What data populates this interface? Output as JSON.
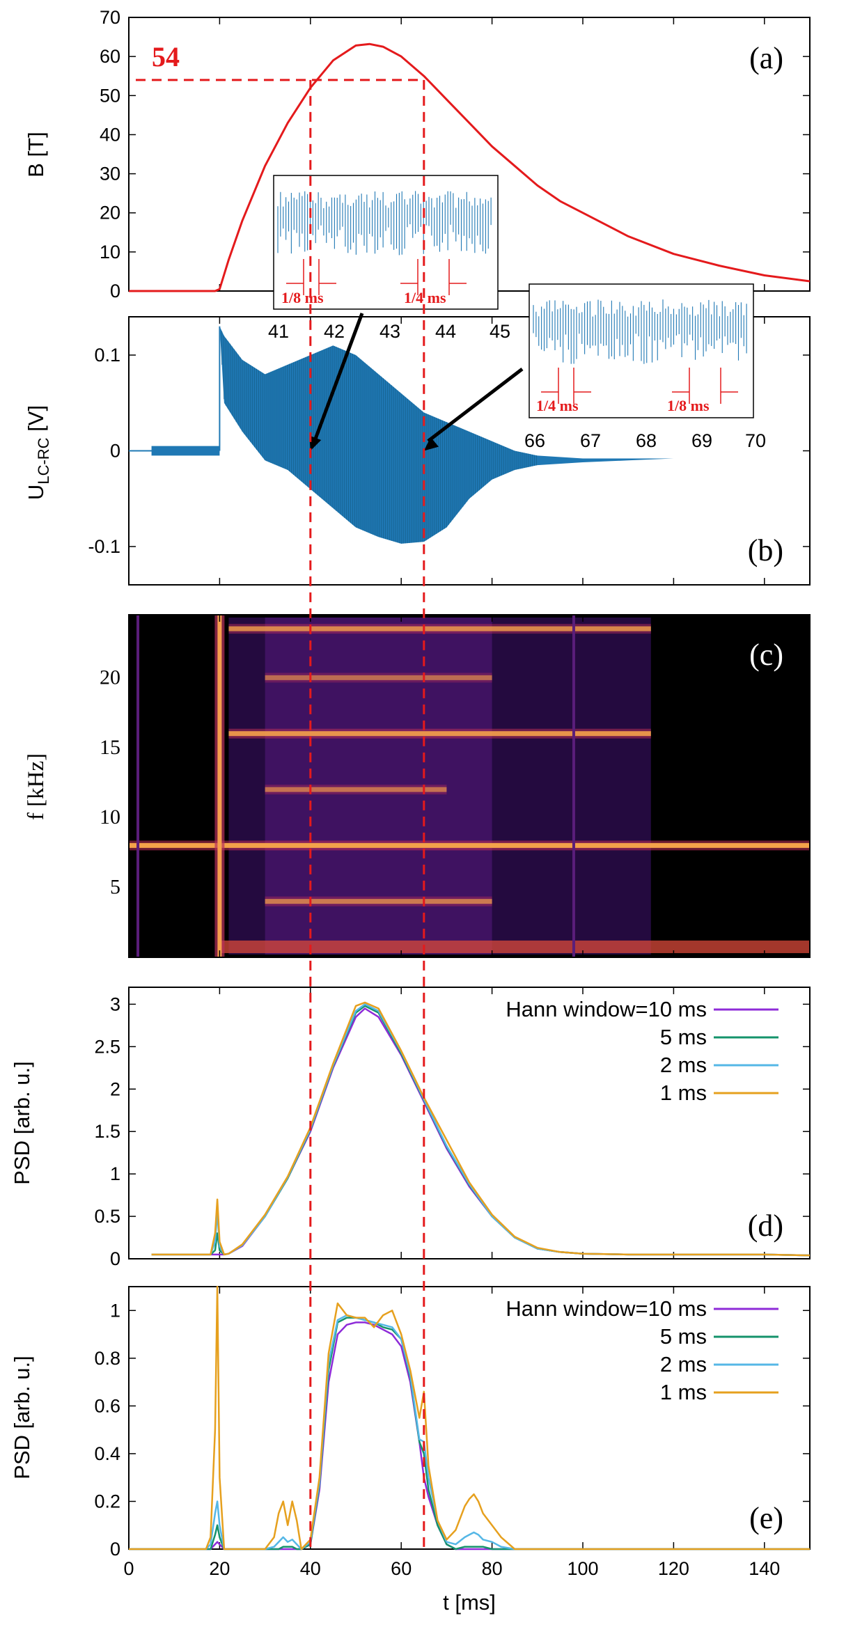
{
  "colors": {
    "field": "#e41a1c",
    "signal": "#1f78b4",
    "guide": "#e41a1c",
    "w10": "#8e2bd8",
    "w5": "#14936b",
    "w2": "#55b7e6",
    "w1": "#e6a01e"
  },
  "chart_data": [
    {
      "id": "a",
      "type": "line",
      "panel_label": "(a)",
      "ylabel": "B [T]",
      "ylim": [
        0,
        70
      ],
      "yticks": [
        0,
        10,
        20,
        30,
        40,
        50,
        60,
        70
      ],
      "xlim": [
        0,
        150
      ],
      "series": [
        {
          "name": "B",
          "x": [
            0,
            19,
            20,
            22,
            25,
            30,
            35,
            40,
            45,
            50,
            53,
            56,
            60,
            65,
            70,
            75,
            80,
            85,
            90,
            95,
            100,
            110,
            120,
            130,
            140,
            150
          ],
          "values": [
            0,
            0,
            0.5,
            8,
            18,
            32,
            43,
            52,
            59,
            62.8,
            63.2,
            62.5,
            60,
            55,
            49,
            43,
            37,
            32,
            27,
            23,
            20,
            14,
            9.5,
            6.5,
            4,
            2.5
          ]
        }
      ],
      "annotation": {
        "text": "54",
        "value": 54
      }
    },
    {
      "id": "b",
      "type": "line",
      "panel_label": "(b)",
      "ylabel_main": "U",
      "ylabel_sub": "LC-RC",
      "ylabel_unit": " [V]",
      "ylim": [
        -0.14,
        0.14
      ],
      "yticks": [
        -0.1,
        0,
        0.1
      ],
      "yticklabels": [
        "-0.1",
        "0",
        "0.1"
      ],
      "xlim": [
        0,
        150
      ],
      "envelope_upper": {
        "x": [
          20,
          21,
          25,
          30,
          35,
          40,
          45,
          50,
          55,
          60,
          65,
          70,
          75,
          80,
          85,
          90,
          100,
          110,
          120,
          130,
          140,
          150
        ],
        "values": [
          0.13,
          0.12,
          0.095,
          0.08,
          0.09,
          0.1,
          0.11,
          0.1,
          0.08,
          0.06,
          0.04,
          0.03,
          0.02,
          0.01,
          0.0,
          -0.005,
          -0.008,
          -0.008,
          -0.008,
          -0.006,
          -0.004,
          -0.003
        ]
      },
      "envelope_lower": {
        "x": [
          20,
          21,
          25,
          30,
          35,
          40,
          45,
          50,
          55,
          60,
          65,
          70,
          75,
          80,
          85,
          90,
          100,
          110,
          120,
          130,
          140,
          150
        ],
        "values": [
          0.13,
          0.05,
          0.02,
          -0.01,
          -0.02,
          -0.04,
          -0.06,
          -0.08,
          -0.09,
          -0.097,
          -0.095,
          -0.08,
          -0.05,
          -0.03,
          -0.02,
          -0.015,
          -0.012,
          -0.01,
          -0.008,
          -0.006,
          -0.004,
          -0.003
        ]
      },
      "insets": [
        {
          "ticks": [
            "41",
            "42",
            "43",
            "44",
            "45"
          ],
          "label_left": "1/8 ms",
          "label_right": "1/4 ms",
          "arrow_to": [
            40,
            0
          ]
        },
        {
          "ticks": [
            "66",
            "67",
            "68",
            "69",
            "70"
          ],
          "label_left": "1/4 ms",
          "label_right": "1/8 ms",
          "arrow_to": [
            65,
            0
          ]
        }
      ]
    },
    {
      "id": "c",
      "type": "heatmap",
      "panel_label": "(c)",
      "ylabel": "f [kHz]",
      "ylim": [
        0,
        24.5
      ],
      "yticks": [
        5,
        10,
        15,
        20
      ],
      "xlim": [
        0,
        150
      ],
      "bands": [
        {
          "f": 23.5,
          "t0": 22,
          "t1": 115,
          "strength": 0.8
        },
        {
          "f": 16,
          "t0": 22,
          "t1": 115,
          "strength": 0.9
        },
        {
          "f": 8,
          "t0": -1,
          "t1": 150,
          "strength": 1.0
        },
        {
          "f": 20,
          "t0": 30,
          "t1": 80,
          "strength": 0.6
        },
        {
          "f": 12,
          "t0": 30,
          "t1": 70,
          "strength": 0.65
        },
        {
          "f": 4,
          "t0": 30,
          "t1": 80,
          "strength": 0.7
        }
      ]
    },
    {
      "id": "d",
      "type": "line",
      "panel_label": "(d)",
      "ylabel": "PSD [arb. u.]",
      "ylim": [
        0,
        3.2
      ],
      "yticks": [
        0,
        0.5,
        1,
        1.5,
        2,
        2.5,
        3
      ],
      "yticklabels": [
        "0",
        "0.5",
        "1",
        "1.5",
        "2",
        "2.5",
        "3"
      ],
      "xlim": [
        0,
        150
      ],
      "legend": [
        "Hann window=10 ms",
        "5 ms",
        "2 ms",
        "1 ms"
      ],
      "x": [
        5,
        10,
        15,
        18,
        19,
        19.5,
        20,
        21,
        22,
        25,
        30,
        35,
        40,
        45,
        50,
        52,
        55,
        60,
        65,
        70,
        75,
        80,
        85,
        90,
        95,
        100,
        110,
        120,
        130,
        140,
        150
      ],
      "series": [
        {
          "name": "Hann window=10 ms",
          "values": [
            0.05,
            0.05,
            0.05,
            0.05,
            0.05,
            0.05,
            0.05,
            0.05,
            0.06,
            0.15,
            0.5,
            0.95,
            1.5,
            2.25,
            2.85,
            2.95,
            2.85,
            2.4,
            1.85,
            1.3,
            0.85,
            0.5,
            0.25,
            0.12,
            0.08,
            0.06,
            0.05,
            0.05,
            0.05,
            0.05,
            0.04
          ]
        },
        {
          "name": "5 ms",
          "values": [
            0.05,
            0.05,
            0.05,
            0.05,
            0.1,
            0.3,
            0.1,
            0.05,
            0.06,
            0.16,
            0.5,
            0.95,
            1.52,
            2.27,
            2.9,
            2.98,
            2.9,
            2.42,
            1.87,
            1.32,
            0.87,
            0.5,
            0.25,
            0.12,
            0.08,
            0.06,
            0.05,
            0.05,
            0.05,
            0.05,
            0.04
          ]
        },
        {
          "name": "2 ms",
          "values": [
            0.05,
            0.05,
            0.05,
            0.05,
            0.2,
            0.55,
            0.15,
            0.05,
            0.06,
            0.16,
            0.5,
            0.96,
            1.53,
            2.28,
            2.92,
            3.0,
            2.92,
            2.44,
            1.88,
            1.33,
            0.88,
            0.5,
            0.25,
            0.12,
            0.08,
            0.06,
            0.05,
            0.05,
            0.05,
            0.05,
            0.04
          ]
        },
        {
          "name": "1 ms",
          "values": [
            0.05,
            0.05,
            0.05,
            0.05,
            0.3,
            0.7,
            0.2,
            0.05,
            0.06,
            0.17,
            0.52,
            0.97,
            1.55,
            2.3,
            2.98,
            3.02,
            2.95,
            2.45,
            1.9,
            1.4,
            0.9,
            0.52,
            0.26,
            0.13,
            0.08,
            0.06,
            0.05,
            0.05,
            0.05,
            0.05,
            0.04
          ]
        }
      ]
    },
    {
      "id": "e",
      "type": "line",
      "panel_label": "(e)",
      "ylabel": "PSD [arb. u.]",
      "ylim": [
        0,
        1.1
      ],
      "yticks": [
        0,
        0.2,
        0.4,
        0.6,
        0.8,
        1
      ],
      "yticklabels": [
        "0",
        "0.2",
        "0.4",
        "0.6",
        "0.8",
        "1"
      ],
      "xlim": [
        0,
        150
      ],
      "xticks": [
        0,
        20,
        40,
        60,
        80,
        100,
        120,
        140
      ],
      "xticklabels": [
        "0",
        "20",
        "40",
        "60",
        "80",
        "100",
        "120",
        "140"
      ],
      "xlabel": "t [ms]",
      "legend": [
        "Hann window=10 ms",
        "5 ms",
        "2 ms",
        "1 ms"
      ],
      "x": [
        0,
        17,
        18,
        19,
        19.5,
        20,
        21,
        30,
        32,
        33,
        34,
        35,
        36,
        37,
        38,
        40,
        42,
        44,
        46,
        48,
        50,
        52,
        54,
        56,
        58,
        60,
        62,
        64,
        65,
        66,
        68,
        70,
        72,
        74,
        75,
        76,
        77,
        78,
        80,
        82,
        85,
        90,
        100,
        150
      ],
      "series": [
        {
          "name": "Hann window=10 ms",
          "values": [
            0,
            0,
            0,
            0.02,
            0.03,
            0.02,
            0,
            0,
            0,
            0,
            0,
            0,
            0,
            0,
            0,
            0.02,
            0.25,
            0.7,
            0.9,
            0.94,
            0.95,
            0.95,
            0.94,
            0.92,
            0.9,
            0.85,
            0.7,
            0.45,
            0.3,
            0.22,
            0.1,
            0.02,
            0,
            0,
            0,
            0,
            0,
            0,
            0,
            0,
            0,
            0,
            0,
            0
          ]
        },
        {
          "name": "5 ms",
          "values": [
            0,
            0,
            0,
            0.06,
            0.1,
            0.05,
            0,
            0,
            0,
            0,
            0.01,
            0.01,
            0.01,
            0,
            0,
            0.02,
            0.27,
            0.75,
            0.95,
            0.97,
            0.97,
            0.96,
            0.95,
            0.93,
            0.92,
            0.88,
            0.72,
            0.45,
            0.4,
            0.25,
            0.1,
            0.02,
            0,
            0.01,
            0.01,
            0.01,
            0.01,
            0.01,
            0,
            0,
            0,
            0,
            0,
            0
          ]
        },
        {
          "name": "2 ms",
          "values": [
            0,
            0,
            0.02,
            0.15,
            0.2,
            0.1,
            0,
            0,
            0.01,
            0.03,
            0.05,
            0.03,
            0.04,
            0.02,
            0,
            0.03,
            0.28,
            0.78,
            0.96,
            0.98,
            0.97,
            0.96,
            0.95,
            0.94,
            0.93,
            0.88,
            0.73,
            0.46,
            0.45,
            0.3,
            0.12,
            0.03,
            0.02,
            0.05,
            0.06,
            0.07,
            0.06,
            0.04,
            0.03,
            0.01,
            0,
            0,
            0,
            0
          ]
        },
        {
          "name": "1 ms",
          "values": [
            0,
            0,
            0.05,
            0.5,
            1.1,
            0.3,
            0,
            0,
            0.05,
            0.15,
            0.2,
            0.1,
            0.2,
            0.12,
            0,
            0.04,
            0.3,
            0.82,
            1.03,
            0.98,
            0.97,
            0.97,
            0.93,
            0.98,
            1.0,
            0.9,
            0.75,
            0.55,
            0.66,
            0.35,
            0.12,
            0.04,
            0.08,
            0.18,
            0.21,
            0.23,
            0.2,
            0.15,
            0.1,
            0.05,
            0,
            0,
            0,
            0
          ]
        }
      ]
    }
  ],
  "guides": {
    "t_left": 40,
    "t_right": 65
  }
}
